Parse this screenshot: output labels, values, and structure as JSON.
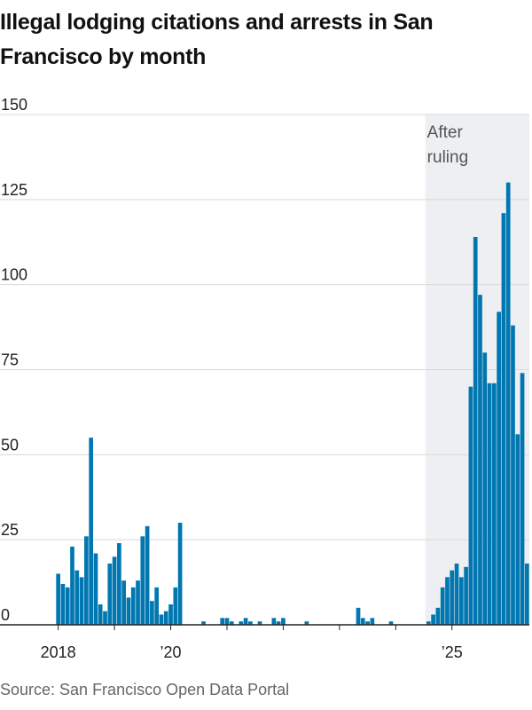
{
  "title": "Illegal lodging citations and arrests in San Francisco by month",
  "source": "Source: San Francisco Open Data Portal",
  "colors": {
    "bar": "#0077b0",
    "grid": "#d8d8d8",
    "axis": "#222222",
    "shade": "#eeeff2"
  },
  "chart_data": {
    "type": "bar",
    "title": "Illegal lodging citations and arrests in San Francisco by month",
    "xlabel": "",
    "ylabel": "",
    "ylim": [
      0,
      150
    ],
    "yticks": [
      {
        "value": 0,
        "label": "0"
      },
      {
        "value": 25,
        "label": "25"
      },
      {
        "value": 50,
        "label": "50"
      },
      {
        "value": 75,
        "label": "75"
      },
      {
        "value": 100,
        "label": "100"
      },
      {
        "value": 125,
        "label": "125"
      },
      {
        "value": 150,
        "label": "150"
      }
    ],
    "xticks": [
      {
        "month": "2018-01",
        "label": "2018"
      },
      {
        "month": "2019-01",
        "label": ""
      },
      {
        "month": "2020-01",
        "label": "’20"
      },
      {
        "month": "2021-01",
        "label": ""
      },
      {
        "month": "2022-01",
        "label": ""
      },
      {
        "month": "2023-01",
        "label": ""
      },
      {
        "month": "2024-01",
        "label": ""
      },
      {
        "month": "2025-01",
        "label": "’25"
      }
    ],
    "grid": true,
    "annotation": {
      "text": [
        "After",
        "ruling"
      ],
      "from": "2024-08"
    },
    "series": [
      {
        "start": "2018-01",
        "values": [
          15,
          12,
          11,
          23,
          16,
          14,
          26,
          55,
          21,
          6,
          4,
          18,
          20,
          24,
          13,
          8,
          11,
          13,
          26,
          29,
          7,
          11,
          3,
          4,
          6,
          11,
          30,
          0,
          0,
          0,
          0,
          1,
          0,
          0,
          0,
          2,
          2,
          1,
          0,
          1,
          2,
          1,
          0,
          1,
          0,
          0,
          2,
          1,
          2,
          0,
          0,
          0,
          0,
          1,
          0,
          0,
          0,
          0,
          0,
          0,
          0,
          0,
          0,
          0,
          5,
          2,
          1,
          2,
          0,
          0,
          0,
          1,
          0,
          0,
          0,
          0,
          0,
          0,
          0,
          1,
          3,
          5,
          11,
          14,
          16,
          18,
          14,
          17,
          70,
          114,
          97,
          80,
          71,
          71,
          92,
          121,
          130,
          88,
          56,
          74,
          18
        ]
      }
    ]
  }
}
